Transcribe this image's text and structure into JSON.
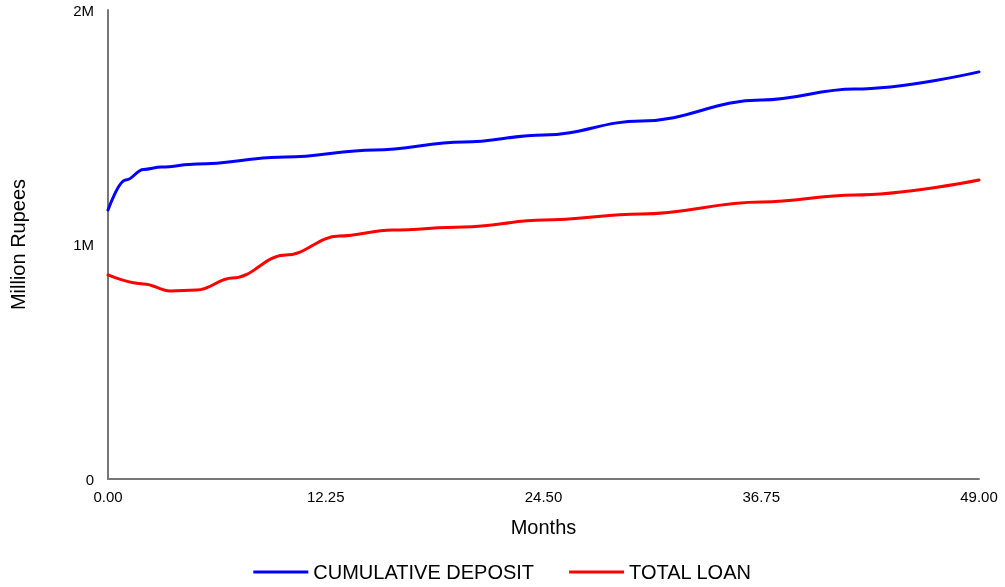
{
  "chart_data": {
    "type": "line",
    "xlabel": "Months",
    "ylabel": "Million Rupees",
    "xlim": [
      0,
      49
    ],
    "xticks": [
      {
        "value": 0,
        "label": "0.00"
      },
      {
        "value": 12.25,
        "label": "12.25"
      },
      {
        "value": 24.5,
        "label": "24.50"
      },
      {
        "value": 36.75,
        "label": "36.75"
      },
      {
        "value": 49,
        "label": "49.00"
      }
    ],
    "ylim": [
      0,
      2000000
    ],
    "yticks": [
      0,
      {
        "value": 1000000,
        "label": "1M"
      },
      {
        "value": 2000000,
        "label": "2M"
      }
    ],
    "grid": false,
    "legend": "bottom",
    "marker": "none",
    "line_style": "solid",
    "series": [
      {
        "name": "CUMULATIVE DEPOSIT",
        "color": "#0000ff",
        "x": [
          0,
          1,
          2,
          3,
          5,
          10,
          15,
          20,
          24.5,
          30,
          36.75,
          42,
          49
        ],
        "values": [
          1147000,
          1275000,
          1320000,
          1330000,
          1343000,
          1373000,
          1403000,
          1437000,
          1467000,
          1527000,
          1616000,
          1663000,
          1736000
        ]
      },
      {
        "name": "TOTAL LOAN",
        "color": "#ff0000",
        "x": [
          0,
          2,
          3.5,
          5,
          7,
          10,
          13,
          16,
          20,
          24.5,
          30,
          36.75,
          42,
          49
        ],
        "values": [
          870000,
          832000,
          802000,
          806000,
          857000,
          955000,
          1036000,
          1062000,
          1075000,
          1104000,
          1130000,
          1181000,
          1211000,
          1275000
        ]
      }
    ]
  }
}
